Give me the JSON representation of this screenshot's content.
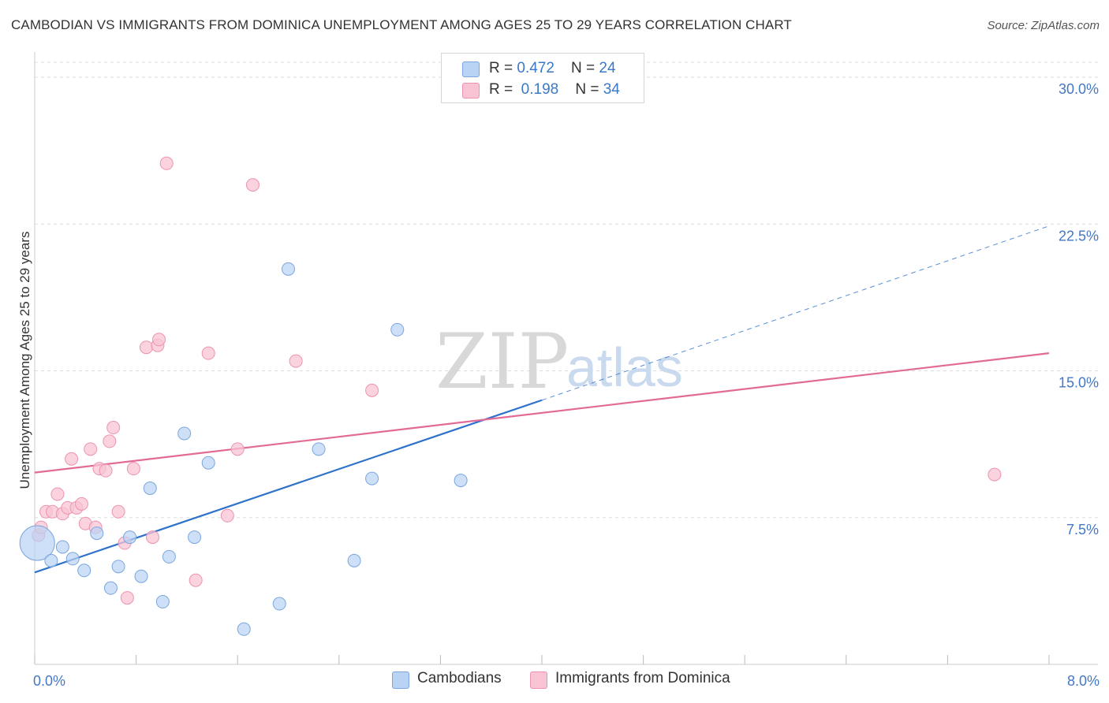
{
  "header": {
    "title": "CAMBODIAN VS IMMIGRANTS FROM DOMINICA UNEMPLOYMENT AMONG AGES 25 TO 29 YEARS CORRELATION CHART",
    "source": "Source: ZipAtlas.com"
  },
  "watermark": {
    "zip": "ZIP",
    "atlas": "atlas"
  },
  "legend": {
    "rows": [
      {
        "r_label": "R = ",
        "r_value": "0.472",
        "n_label": "N = ",
        "n_value": "24"
      },
      {
        "r_label": "R = ",
        "r_value": " 0.198",
        "n_label": "N = ",
        "n_value": "34"
      }
    ]
  },
  "bottom_legend": {
    "series1": "Cambodians",
    "series2": "Immigrants from Dominica"
  },
  "colors": {
    "blue_fill": "#b9d3f4",
    "blue_stroke": "#7aa6dd",
    "blue_line": "#2f72cc",
    "pink_fill": "#f8c4d4",
    "pink_stroke": "#ec93af",
    "pink_line": "#e26a96",
    "grid": "#dddddd",
    "tick_text": "#4477c4"
  },
  "chart_data": {
    "type": "scatter",
    "title": "CAMBODIAN VS IMMIGRANTS FROM DOMINICA UNEMPLOYMENT AMONG AGES 25 TO 29 YEARS CORRELATION CHART",
    "xlabel": "",
    "ylabel": "Unemployment Among Ages 25 to 29 years",
    "xlim": [
      0.0,
      8.0
    ],
    "ylim": [
      0.0,
      30.0
    ],
    "x_tick_labels": [
      "0.0%",
      "8.0%"
    ],
    "y_ticks": [
      7.5,
      15.0,
      22.5,
      30.0
    ],
    "y_tick_labels": [
      "7.5%",
      "15.0%",
      "22.5%",
      "30.0%"
    ],
    "grid": true,
    "legend_position": "top-center",
    "series": [
      {
        "name": "Cambodians",
        "color": "blue",
        "r": 0.472,
        "n": 24,
        "points": [
          {
            "x": 0.02,
            "y": 6.2,
            "big": true
          },
          {
            "x": 0.13,
            "y": 5.3
          },
          {
            "x": 0.22,
            "y": 6.0
          },
          {
            "x": 0.3,
            "y": 5.4
          },
          {
            "x": 0.39,
            "y": 4.8
          },
          {
            "x": 0.49,
            "y": 6.7
          },
          {
            "x": 0.6,
            "y": 3.9
          },
          {
            "x": 0.66,
            "y": 5.0
          },
          {
            "x": 0.75,
            "y": 6.5
          },
          {
            "x": 0.84,
            "y": 4.5
          },
          {
            "x": 0.91,
            "y": 9.0
          },
          {
            "x": 1.01,
            "y": 3.2
          },
          {
            "x": 1.06,
            "y": 5.5
          },
          {
            "x": 1.18,
            "y": 11.8
          },
          {
            "x": 1.26,
            "y": 6.5
          },
          {
            "x": 1.37,
            "y": 10.3
          },
          {
            "x": 1.65,
            "y": 1.8
          },
          {
            "x": 1.93,
            "y": 3.1
          },
          {
            "x": 2.0,
            "y": 20.2
          },
          {
            "x": 2.24,
            "y": 11.0
          },
          {
            "x": 2.52,
            "y": 5.3
          },
          {
            "x": 2.66,
            "y": 9.5
          },
          {
            "x": 2.86,
            "y": 17.1
          },
          {
            "x": 3.36,
            "y": 9.4
          }
        ],
        "trend": {
          "x0": 0.0,
          "y0": 4.7,
          "x1": 4.0,
          "y1": 13.5,
          "dashed_to_x": 8.0,
          "dashed_to_y": 22.4
        }
      },
      {
        "name": "Immigrants from Dominica",
        "color": "pink",
        "r": 0.198,
        "n": 34,
        "points": [
          {
            "x": 0.03,
            "y": 6.6
          },
          {
            "x": 0.05,
            "y": 7.0
          },
          {
            "x": 0.09,
            "y": 7.8
          },
          {
            "x": 0.14,
            "y": 7.8
          },
          {
            "x": 0.18,
            "y": 8.7
          },
          {
            "x": 0.22,
            "y": 7.7
          },
          {
            "x": 0.26,
            "y": 8.0
          },
          {
            "x": 0.29,
            "y": 10.5
          },
          {
            "x": 0.33,
            "y": 8.0
          },
          {
            "x": 0.37,
            "y": 8.2
          },
          {
            "x": 0.4,
            "y": 7.2
          },
          {
            "x": 0.44,
            "y": 11.0
          },
          {
            "x": 0.48,
            "y": 7.0
          },
          {
            "x": 0.51,
            "y": 10.0
          },
          {
            "x": 0.56,
            "y": 9.9
          },
          {
            "x": 0.59,
            "y": 11.4
          },
          {
            "x": 0.62,
            "y": 12.1
          },
          {
            "x": 0.66,
            "y": 7.8
          },
          {
            "x": 0.71,
            "y": 6.2
          },
          {
            "x": 0.73,
            "y": 3.4
          },
          {
            "x": 0.78,
            "y": 10.0
          },
          {
            "x": 0.88,
            "y": 16.2
          },
          {
            "x": 0.93,
            "y": 6.5
          },
          {
            "x": 0.97,
            "y": 16.3
          },
          {
            "x": 0.98,
            "y": 16.6
          },
          {
            "x": 1.04,
            "y": 25.6
          },
          {
            "x": 1.27,
            "y": 4.3
          },
          {
            "x": 1.37,
            "y": 15.9
          },
          {
            "x": 1.52,
            "y": 7.6
          },
          {
            "x": 1.6,
            "y": 11.0
          },
          {
            "x": 1.72,
            "y": 24.5
          },
          {
            "x": 2.06,
            "y": 15.5
          },
          {
            "x": 2.66,
            "y": 14.0
          },
          {
            "x": 7.57,
            "y": 9.7
          }
        ],
        "trend": {
          "x0": 0.0,
          "y0": 9.8,
          "x1": 8.0,
          "y1": 15.9
        }
      }
    ]
  }
}
